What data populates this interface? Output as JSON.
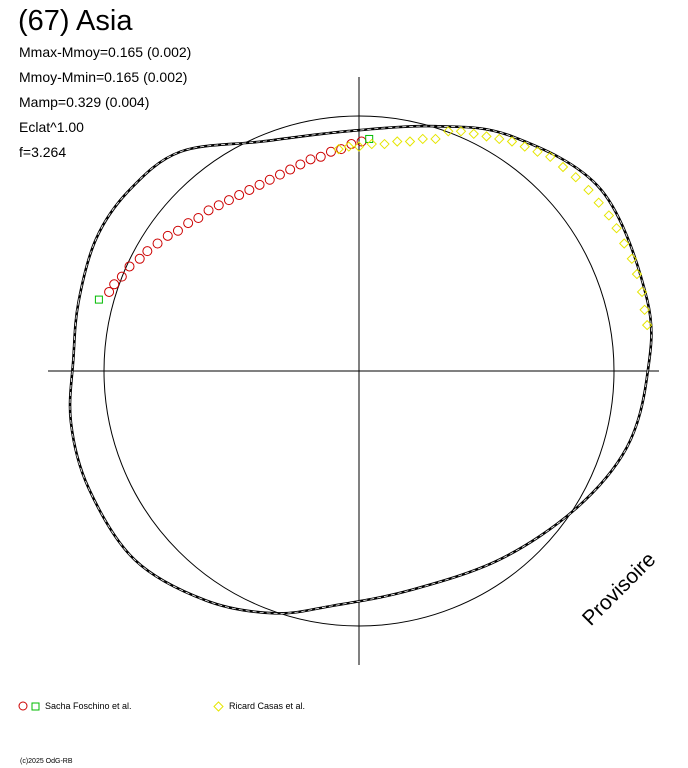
{
  "header": {
    "title": "(67) Asia",
    "stats": [
      "Mmax-Mmoy=0.165 (0.002)",
      "Mmoy-Mmin=0.165 (0.002)",
      "Mamp=0.329 (0.004)",
      "Eclat^1.00",
      "f=3.264"
    ]
  },
  "legend": {
    "items": [
      {
        "label": "Sacha Foschino et al.",
        "color": "#cc0000",
        "secondary_color": "#00bb00"
      },
      {
        "label": "Ricard Casas et al.",
        "color": "#e6e600"
      }
    ]
  },
  "watermark": "Provisoire",
  "credit": "(c)2025 OdG-RB",
  "chart_data": {
    "type": "scatter",
    "projection": "polar",
    "xlim": [
      -1.2,
      1.2
    ],
    "ylim": [
      -1.2,
      1.2
    ],
    "reference_circle_radius": 1.0,
    "grid": false,
    "axes": "crosshair through origin",
    "model_curve": {
      "points": [
        [
          -1.1,
          0.27
        ],
        [
          -1.03,
          0.52
        ],
        [
          -0.9,
          0.71
        ],
        [
          -0.7,
          0.86
        ],
        [
          -0.38,
          0.9
        ],
        [
          -0.05,
          0.94
        ],
        [
          0.3,
          0.96
        ],
        [
          0.6,
          0.92
        ],
        [
          0.95,
          0.71
        ],
        [
          1.13,
          0.28
        ],
        [
          1.13,
          -0.02
        ],
        [
          1.05,
          -0.3
        ],
        [
          0.85,
          -0.54
        ],
        [
          0.55,
          -0.74
        ],
        [
          0.2,
          -0.86
        ],
        [
          -0.1,
          -0.92
        ],
        [
          -0.33,
          -0.95
        ],
        [
          -0.6,
          -0.9
        ],
        [
          -0.88,
          -0.74
        ],
        [
          -1.06,
          -0.46
        ],
        [
          -1.13,
          -0.2
        ],
        [
          -1.12,
          0.05
        ]
      ]
    },
    "series": [
      {
        "name": "Sacha Foschino et al.",
        "marker": "circle",
        "color": "#cc0000",
        "points": [
          [
            -0.98,
            0.31
          ],
          [
            -0.96,
            0.34
          ],
          [
            -0.93,
            0.37
          ],
          [
            -0.9,
            0.41
          ],
          [
            -0.86,
            0.44
          ],
          [
            -0.83,
            0.47
          ],
          [
            -0.79,
            0.5
          ],
          [
            -0.75,
            0.53
          ],
          [
            -0.71,
            0.55
          ],
          [
            -0.67,
            0.58
          ],
          [
            -0.63,
            0.6
          ],
          [
            -0.59,
            0.63
          ],
          [
            -0.55,
            0.65
          ],
          [
            -0.51,
            0.67
          ],
          [
            -0.47,
            0.69
          ],
          [
            -0.43,
            0.71
          ],
          [
            -0.39,
            0.73
          ],
          [
            -0.35,
            0.75
          ],
          [
            -0.31,
            0.77
          ],
          [
            -0.27,
            0.79
          ],
          [
            -0.23,
            0.81
          ],
          [
            -0.19,
            0.83
          ],
          [
            -0.15,
            0.84
          ],
          [
            -0.11,
            0.86
          ],
          [
            -0.07,
            0.87
          ],
          [
            -0.03,
            0.89
          ],
          [
            0.01,
            0.9
          ]
        ]
      },
      {
        "name": "Sacha Foschino et al.",
        "marker": "square",
        "color": "#00bb00",
        "points": [
          [
            -1.02,
            0.28
          ],
          [
            0.04,
            0.91
          ]
        ]
      },
      {
        "name": "Ricard Casas et al.",
        "marker": "diamond",
        "color": "#e6e600",
        "points": [
          [
            -0.08,
            0.87
          ],
          [
            -0.04,
            0.88
          ],
          [
            0.0,
            0.88
          ],
          [
            0.05,
            0.89
          ],
          [
            0.1,
            0.89
          ],
          [
            0.15,
            0.9
          ],
          [
            0.2,
            0.9
          ],
          [
            0.25,
            0.91
          ],
          [
            0.3,
            0.91
          ],
          [
            0.35,
            0.94
          ],
          [
            0.4,
            0.94
          ],
          [
            0.45,
            0.93
          ],
          [
            0.5,
            0.92
          ],
          [
            0.55,
            0.91
          ],
          [
            0.6,
            0.9
          ],
          [
            0.65,
            0.88
          ],
          [
            0.7,
            0.86
          ],
          [
            0.75,
            0.84
          ],
          [
            0.8,
            0.8
          ],
          [
            0.85,
            0.76
          ],
          [
            0.9,
            0.71
          ],
          [
            0.94,
            0.66
          ],
          [
            0.98,
            0.61
          ],
          [
            1.01,
            0.56
          ],
          [
            1.04,
            0.5
          ],
          [
            1.07,
            0.44
          ],
          [
            1.09,
            0.38
          ],
          [
            1.11,
            0.31
          ],
          [
            1.12,
            0.24
          ],
          [
            1.13,
            0.18
          ]
        ]
      }
    ]
  }
}
